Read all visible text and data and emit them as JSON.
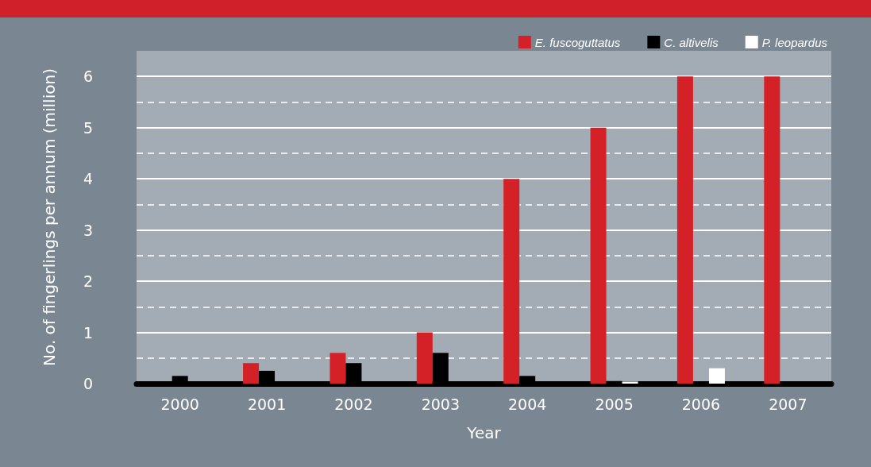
{
  "chart_data": {
    "type": "bar",
    "xlabel": "Year",
    "ylabel": "No. of fingerlings per annum (million)",
    "categories": [
      "2000",
      "2001",
      "2002",
      "2003",
      "2004",
      "2005",
      "2006",
      "2007"
    ],
    "series": [
      {
        "name": "E. fuscoguttatus",
        "color": "#d42027",
        "values": [
          0,
          0.4,
          0.6,
          1,
          4,
          5,
          6,
          6
        ]
      },
      {
        "name": "C. altivelis",
        "color": "#000000",
        "values": [
          0.15,
          0.25,
          0.4,
          0.6,
          0.15,
          0.05,
          0,
          0
        ]
      },
      {
        "name": "P. leopardus",
        "color": "#ffffff",
        "values": [
          0,
          0,
          0,
          0,
          0,
          0.04,
          0.3,
          0
        ]
      }
    ],
    "ylim": [
      0,
      6.5
    ],
    "yticks": [
      0,
      1,
      2,
      3,
      4,
      5,
      6
    ],
    "grid": "y",
    "legend": "top right"
  }
}
